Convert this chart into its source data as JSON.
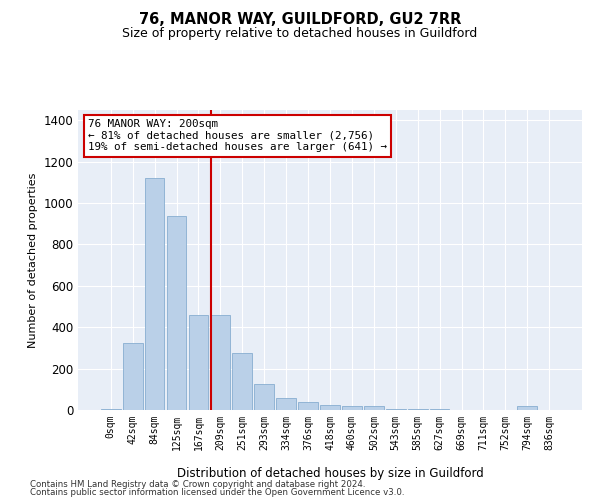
{
  "title": "76, MANOR WAY, GUILDFORD, GU2 7RR",
  "subtitle": "Size of property relative to detached houses in Guildford",
  "xlabel": "Distribution of detached houses by size in Guildford",
  "ylabel": "Number of detached properties",
  "categories": [
    "0sqm",
    "42sqm",
    "84sqm",
    "125sqm",
    "167sqm",
    "209sqm",
    "251sqm",
    "293sqm",
    "334sqm",
    "376sqm",
    "418sqm",
    "460sqm",
    "502sqm",
    "543sqm",
    "585sqm",
    "627sqm",
    "669sqm",
    "711sqm",
    "752sqm",
    "794sqm",
    "836sqm"
  ],
  "values": [
    5,
    325,
    1120,
    940,
    460,
    460,
    275,
    125,
    60,
    40,
    25,
    20,
    20,
    5,
    5,
    5,
    0,
    0,
    0,
    20,
    0
  ],
  "bar_color": "#bad0e8",
  "bar_edge_color": "#88aed0",
  "background_color": "#e8eef7",
  "vline_idx": 5,
  "vline_color": "#cc0000",
  "annotation_text": "76 MANOR WAY: 200sqm\n← 81% of detached houses are smaller (2,756)\n19% of semi-detached houses are larger (641) →",
  "annotation_box_color": "#cc0000",
  "ylim": [
    0,
    1450
  ],
  "yticks": [
    0,
    200,
    400,
    600,
    800,
    1000,
    1200,
    1400
  ],
  "footnote1": "Contains HM Land Registry data © Crown copyright and database right 2024.",
  "footnote2": "Contains public sector information licensed under the Open Government Licence v3.0."
}
